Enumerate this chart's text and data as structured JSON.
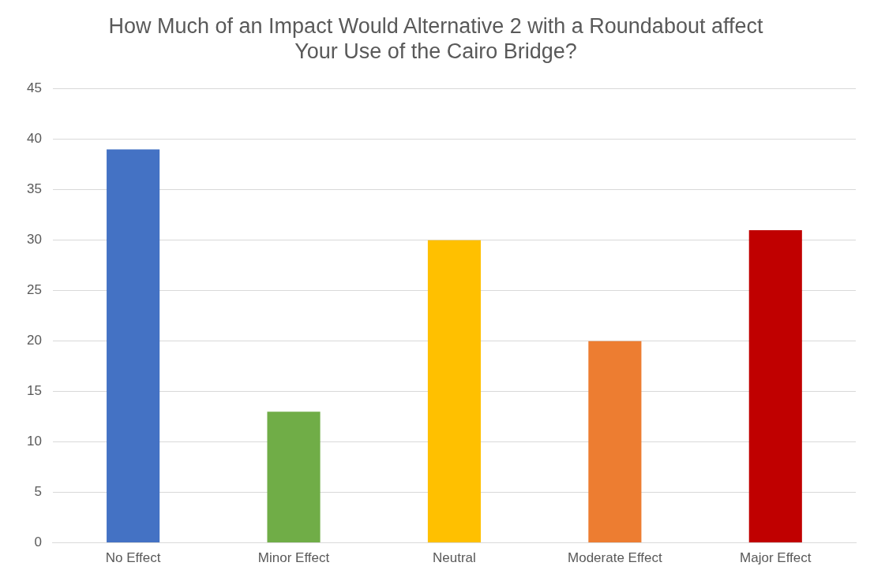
{
  "chart_data": {
    "type": "bar",
    "title": "How Much of an Impact Would Alternative 2 with a Roundabout affect Your Use of the Cairo Bridge?",
    "categories": [
      "No Effect",
      "Minor Effect",
      "Neutral",
      "Moderate Effect",
      "Major Effect"
    ],
    "values": [
      39,
      13,
      30,
      20,
      31
    ],
    "colors": [
      "#4472c4",
      "#70ad47",
      "#ffc000",
      "#ed7d31",
      "#c00000"
    ],
    "ylim": [
      0,
      45
    ],
    "yticks": [
      0,
      5,
      10,
      15,
      20,
      25,
      30,
      35,
      40,
      45
    ],
    "grid": "y",
    "legend": false
  }
}
